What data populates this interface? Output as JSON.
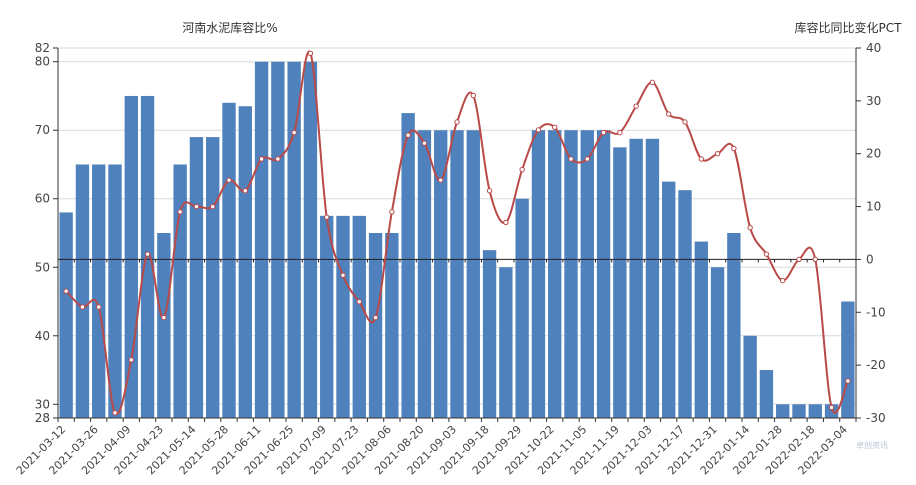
{
  "chart_data": {
    "type": "bar",
    "title_left": "河南水泥库容比%",
    "title_right": "库容比同比变化PCT",
    "left_axis": {
      "ylim": [
        28,
        82
      ],
      "ticks": [
        28,
        30,
        40,
        50,
        60,
        70,
        80,
        82
      ]
    },
    "right_axis": {
      "ylim": [
        -30,
        40
      ],
      "ticks": [
        -30,
        -20,
        -10,
        0,
        10,
        20,
        30,
        40
      ]
    },
    "grid": true,
    "x_tick_labels": [
      "2021-03-12",
      "2021-03-26",
      "2021-04-09",
      "2021-04-23",
      "2021-05-14",
      "2021-05-28",
      "2021-06-11",
      "2021-06-25",
      "2021-07-09",
      "2021-07-23",
      "2021-08-06",
      "2021-08-20",
      "2021-09-03",
      "2021-09-18",
      "2021-09-29",
      "2021-10-22",
      "2021-11-05",
      "2021-11-19",
      "2021-12-03",
      "2021-12-17",
      "2021-12-31",
      "2022-01-14",
      "2022-01-28",
      "2022-02-18",
      "2022-03-04"
    ],
    "series": [
      {
        "type": "bar",
        "axis": "left",
        "color": "#4f81bd",
        "values": [
          58,
          65,
          65,
          65,
          75,
          75,
          55,
          65,
          69,
          69,
          74,
          73.5,
          80,
          80,
          80,
          80,
          57.5,
          57.5,
          57.5,
          55,
          55,
          72.5,
          70,
          70,
          70,
          70,
          52.5,
          50,
          60,
          70,
          70,
          70,
          70,
          70,
          67.5,
          68.75,
          68.75,
          62.5,
          61.25,
          53.75,
          50,
          55,
          40,
          35,
          30,
          30,
          30,
          30,
          45
        ]
      },
      {
        "type": "line",
        "axis": "right",
        "color": "#b94a48",
        "values": [
          -6,
          -9,
          -9,
          -29,
          -19,
          1,
          -11,
          9,
          10,
          10,
          15,
          13,
          19,
          19,
          24,
          39,
          8,
          -3,
          -8,
          -11,
          9,
          23.5,
          22,
          15,
          26,
          31,
          13,
          7,
          17,
          24.5,
          25,
          19,
          19,
          24,
          24,
          29,
          33.5,
          27.5,
          26,
          19,
          20,
          21,
          6,
          1,
          -4,
          0,
          0,
          -28,
          -23
        ]
      }
    ],
    "watermark": "卓创资讯"
  }
}
